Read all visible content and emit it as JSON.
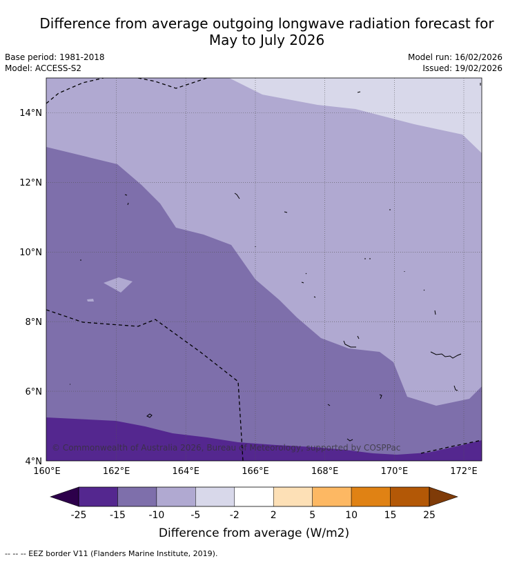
{
  "title_line1": "Difference from average outgoing longwave radiation forecast for",
  "title_line2": "May to July 2026",
  "base_period": "Base period: 1981-2018",
  "model": "Model: ACCESS-S2",
  "model_run": "Model run: 16/02/2026",
  "issued": "Issued: 19/02/2026",
  "copyright": "© Commonwealth of Australia 2026, Bureau of Meteorology, supported by COSPPac",
  "footnote": "-- -- -- EEZ border V11 (Flanders Marine Institute, 2019).",
  "map": {
    "lon_range": [
      160,
      172.5
    ],
    "lat_range": [
      4,
      15
    ],
    "lon_ticks": [
      "160°E",
      "162°E",
      "164°E",
      "166°E",
      "168°E",
      "170°E",
      "172°E"
    ],
    "lat_ticks": [
      "4°N",
      "6°N",
      "8°N",
      "10°N",
      "12°N",
      "14°N"
    ],
    "gridlines": true
  },
  "colorbar": {
    "title": "Difference from average (W/m2)",
    "labels": [
      "-25",
      "-15",
      "-10",
      "-5",
      "-2",
      "2",
      "5",
      "10",
      "15",
      "25"
    ],
    "colors": [
      "#54278f",
      "#7e6fab",
      "#b0a9d1",
      "#d8d8ea",
      "#ffffff",
      "#fde0b6",
      "#fdb863",
      "#e08214",
      "#b35806"
    ],
    "extend_low_color": "#2d004b",
    "extend_high_color": "#7f3b08"
  }
}
